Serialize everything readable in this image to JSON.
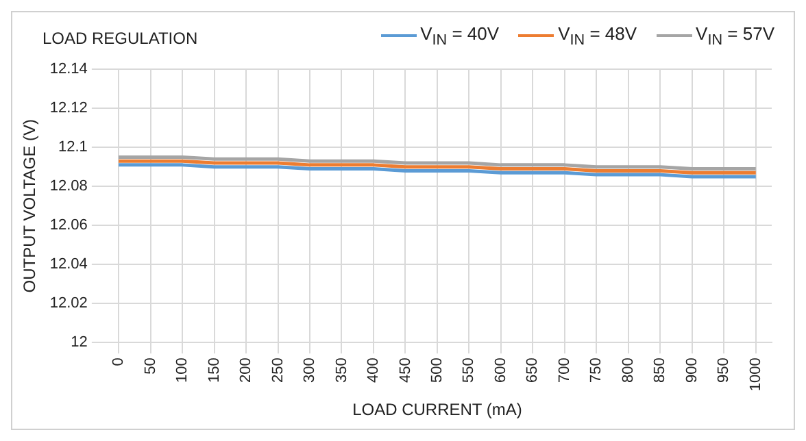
{
  "chart_data": {
    "type": "line",
    "title": "LOAD REGULATION",
    "xlabel": "LOAD CURRENT (mA)",
    "ylabel": "OUTPUT VOLTAGE (V)",
    "categories": [
      "0",
      "50",
      "100",
      "150",
      "200",
      "250",
      "300",
      "350",
      "400",
      "450",
      "500",
      "550",
      "600",
      "650",
      "700",
      "750",
      "800",
      "850",
      "900",
      "950",
      "1000"
    ],
    "series": [
      {
        "name": "V$_{IN}$ = 40V",
        "color": "#5b9bd5",
        "values": [
          12.091,
          12.091,
          12.091,
          12.09,
          12.09,
          12.09,
          12.089,
          12.089,
          12.089,
          12.088,
          12.088,
          12.088,
          12.087,
          12.087,
          12.087,
          12.086,
          12.086,
          12.086,
          12.085,
          12.085,
          12.085
        ]
      },
      {
        "name": "V$_{IN}$ = 48V",
        "color": "#ed7d31",
        "values": [
          12.093,
          12.093,
          12.093,
          12.092,
          12.092,
          12.092,
          12.091,
          12.091,
          12.091,
          12.09,
          12.09,
          12.09,
          12.089,
          12.089,
          12.089,
          12.088,
          12.088,
          12.088,
          12.087,
          12.087,
          12.087
        ]
      },
      {
        "name": "V$_{IN}$ = 57V",
        "color": "#a5a5a5",
        "values": [
          12.095,
          12.095,
          12.095,
          12.094,
          12.094,
          12.094,
          12.093,
          12.093,
          12.093,
          12.092,
          12.092,
          12.092,
          12.091,
          12.091,
          12.091,
          12.09,
          12.09,
          12.09,
          12.089,
          12.089,
          12.089
        ]
      }
    ],
    "ylim": [
      12,
      12.14
    ],
    "yticks": [
      12,
      12.02,
      12.04,
      12.06,
      12.08,
      12.1,
      12.12,
      12.14
    ],
    "grid": true,
    "legend": "top right",
    "marker": "none",
    "line_style": "solid"
  }
}
